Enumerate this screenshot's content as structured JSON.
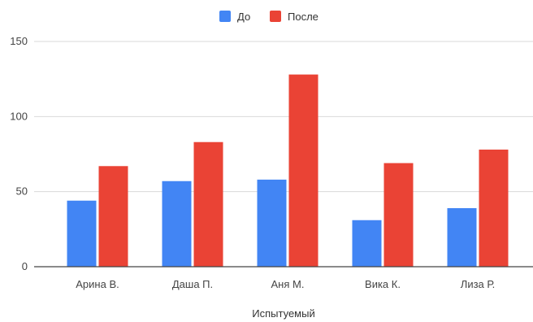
{
  "chart_data": {
    "type": "bar",
    "title": "",
    "xlabel": "Испытуемый",
    "ylabel": "",
    "categories": [
      "Арина В.",
      "Даша П.",
      "Аня М.",
      "Вика К.",
      "Лиза Р."
    ],
    "series": [
      {
        "name": "До",
        "color": "#4285f4",
        "values": [
          44,
          57,
          58,
          31,
          39
        ]
      },
      {
        "name": "После",
        "color": "#ea4335",
        "values": [
          67,
          83,
          128,
          69,
          78
        ]
      }
    ],
    "ylim": [
      0,
      150
    ],
    "yticks": [
      0,
      50,
      100,
      150
    ],
    "grid": true,
    "legend_position": "top-center"
  }
}
